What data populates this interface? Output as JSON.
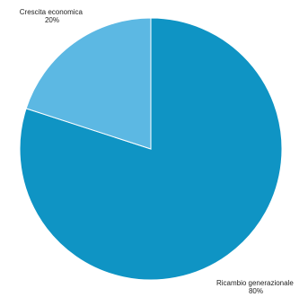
{
  "chart_data": {
    "type": "pie",
    "title": "",
    "start_angle_deg": 0,
    "direction": "clockwise",
    "slices": [
      {
        "label": "Ricambio generazionale",
        "value": 80,
        "value_label": "80%",
        "color": "#0f94c4"
      },
      {
        "label": "Crescita economica",
        "value": 20,
        "value_label": "20%",
        "color": "#5cb8e3"
      }
    ]
  }
}
